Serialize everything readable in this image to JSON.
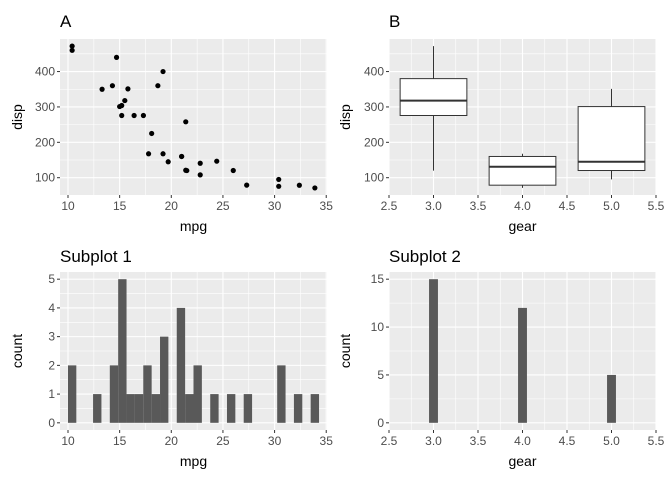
{
  "chart_data": [
    {
      "type": "scatter",
      "title": "A",
      "xlabel": "mpg",
      "ylabel": "disp",
      "xlim": [
        9.225,
        35.075
      ],
      "ylim": [
        51.1,
        492
      ],
      "xticks": [
        10,
        15,
        20,
        25,
        30,
        35
      ],
      "yticks": [
        100,
        200,
        300,
        400
      ],
      "x": [
        21.0,
        21.0,
        22.8,
        21.4,
        18.7,
        18.1,
        14.3,
        24.4,
        22.8,
        19.2,
        17.8,
        16.4,
        17.3,
        15.2,
        10.4,
        10.4,
        14.7,
        32.4,
        30.4,
        33.9,
        21.5,
        15.5,
        15.2,
        13.3,
        19.2,
        27.3,
        26.0,
        30.4,
        15.8,
        19.7,
        15.0,
        21.4
      ],
      "y": [
        160,
        160,
        108,
        258,
        360,
        225,
        360,
        146.7,
        140.8,
        167.6,
        167.6,
        275.8,
        275.8,
        275.8,
        472,
        460,
        440,
        78.7,
        75.7,
        71.1,
        120.1,
        318,
        304,
        350,
        400,
        79,
        120.3,
        95.1,
        351,
        145,
        301,
        121
      ],
      "grid": true
    },
    {
      "type": "boxplot",
      "title": "B",
      "xlabel": "gear",
      "ylabel": "disp",
      "xlim": [
        2.5,
        5.5
      ],
      "ylim": [
        51.1,
        492
      ],
      "xticks": [
        "2.5",
        "3.0",
        "3.5",
        "4.0",
        "4.5",
        "5.0",
        "5.5"
      ],
      "yticks": [
        100,
        200,
        300,
        400
      ],
      "boxes": [
        {
          "x": 3,
          "min": 120.1,
          "q1": 275.8,
          "median": 318,
          "q3": 380,
          "max": 472
        },
        {
          "x": 4,
          "min": 71.1,
          "q1": 78.85,
          "median": 130.9,
          "q3": 160,
          "max": 167.6
        },
        {
          "x": 5,
          "min": 95.1,
          "q1": 120.3,
          "median": 145,
          "q3": 301,
          "max": 351
        }
      ],
      "box_width": 0.75,
      "grid": true
    },
    {
      "type": "bar",
      "subtype": "histogram",
      "title": "Subplot 1",
      "xlabel": "mpg",
      "ylabel": "count",
      "xlim": [
        9.225,
        35.075
      ],
      "ylim": [
        -0.25,
        5.25
      ],
      "xticks": [
        10,
        15,
        20,
        25,
        30,
        35
      ],
      "yticks": [
        0,
        1,
        2,
        3,
        4,
        5
      ],
      "bin_start": 9.995,
      "bin_width": 0.8103,
      "counts": [
        2,
        0,
        0,
        1,
        0,
        2,
        5,
        1,
        1,
        2,
        1,
        3,
        0,
        4,
        1,
        2,
        0,
        1,
        0,
        1,
        0,
        1,
        0,
        0,
        0,
        2,
        0,
        1,
        0,
        1
      ],
      "grid": true
    },
    {
      "type": "bar",
      "subtype": "histogram",
      "title": "Subplot 2",
      "xlabel": "gear",
      "ylabel": "count",
      "xlim": [
        2.5,
        5.5
      ],
      "ylim": [
        -0.75,
        15.75
      ],
      "xticks": [
        "2.5",
        "3.0",
        "3.5",
        "4.0",
        "4.5",
        "5.0",
        "5.5"
      ],
      "yticks": [
        0,
        5,
        10,
        15
      ],
      "bar_width": 0.1,
      "x": [
        3,
        4,
        5
      ],
      "counts": [
        15,
        12,
        5
      ],
      "grid": true
    }
  ],
  "colors": {
    "panel_bg": "#ebebeb",
    "grid": "#ffffff",
    "point": "#000000",
    "bar": "#595959",
    "box_line": "#333333",
    "tick_text": "#4d4d4d"
  }
}
